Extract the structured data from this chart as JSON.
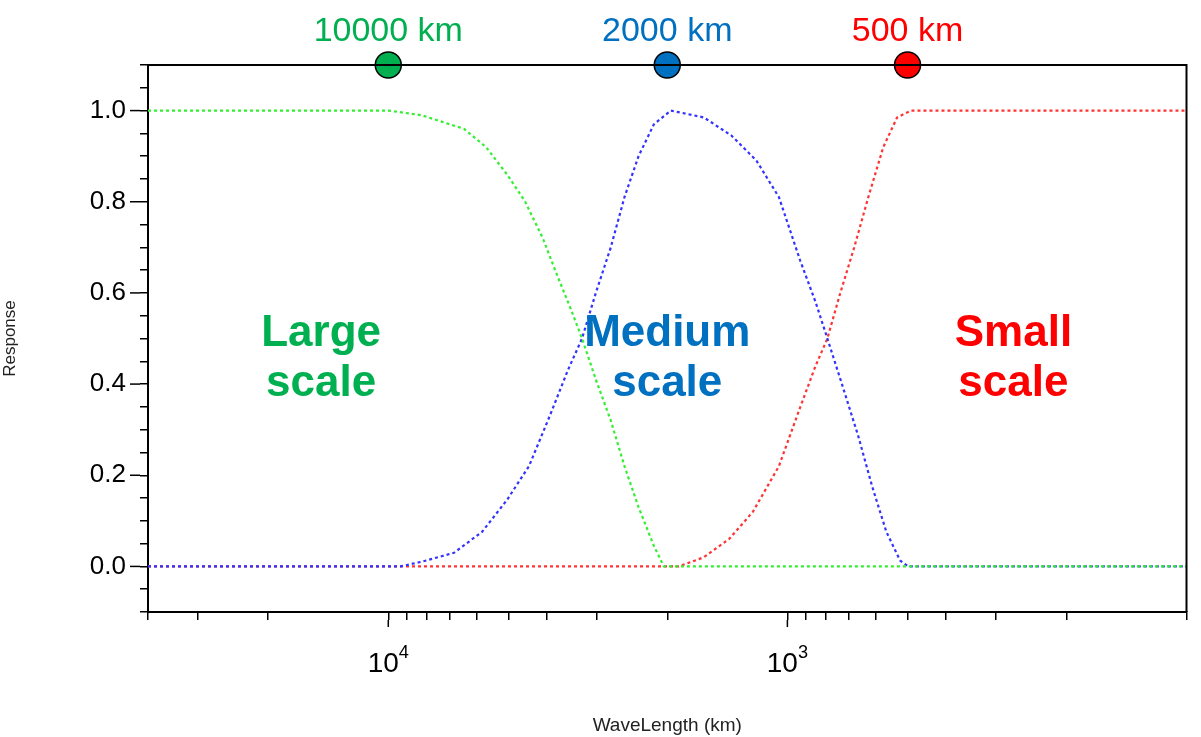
{
  "chart_data": {
    "type": "line",
    "xlabel": "WaveLength (km)",
    "ylabel": "Response",
    "log": "x",
    "line_style": "dotted",
    "grid": false,
    "legend": false,
    "tick_labels": "xy",
    "xlim": [
      40000,
      100
    ],
    "ylim": [
      -0.1,
      1.1
    ],
    "xticks": [
      {
        "value": 40000,
        "label": null
      },
      {
        "value": 30000,
        "label": null
      },
      {
        "value": 20000,
        "label": null
      },
      {
        "value": 10000,
        "label": "10$^{4}$"
      },
      {
        "value": 9000,
        "label": null
      },
      {
        "value": 8000,
        "label": null
      },
      {
        "value": 7000,
        "label": null
      },
      {
        "value": 6000,
        "label": null
      },
      {
        "value": 5000,
        "label": null
      },
      {
        "value": 4000,
        "label": null
      },
      {
        "value": 3000,
        "label": null
      },
      {
        "value": 2000,
        "label": null
      },
      {
        "value": 1000,
        "label": "10$^{3}$"
      },
      {
        "value": 900,
        "label": null
      },
      {
        "value": 800,
        "label": null
      },
      {
        "value": 700,
        "label": null
      },
      {
        "value": 600,
        "label": null
      },
      {
        "value": 500,
        "label": null
      },
      {
        "value": 400,
        "label": null
      },
      {
        "value": 300,
        "label": null
      },
      {
        "value": 200,
        "label": null
      },
      {
        "value": 100,
        "label": null
      }
    ],
    "yticks": [
      {
        "value": -0.1,
        "label": null
      },
      {
        "value": -0.05,
        "label": null
      },
      {
        "value": 0,
        "label": "0.0"
      },
      {
        "value": 0.05,
        "label": null
      },
      {
        "value": 0.1,
        "label": null
      },
      {
        "value": 0.15,
        "label": null
      },
      {
        "value": 0.2,
        "label": "0.2"
      },
      {
        "value": 0.25,
        "label": null
      },
      {
        "value": 0.3,
        "label": null
      },
      {
        "value": 0.35,
        "label": null
      },
      {
        "value": 0.4,
        "label": "0.4"
      },
      {
        "value": 0.45,
        "label": null
      },
      {
        "value": 0.5,
        "label": null
      },
      {
        "value": 0.55,
        "label": null
      },
      {
        "value": 0.6,
        "label": "0.6"
      },
      {
        "value": 0.65,
        "label": null
      },
      {
        "value": 0.7,
        "label": null
      },
      {
        "value": 0.75,
        "label": null
      },
      {
        "value": 0.8,
        "label": "0.8"
      },
      {
        "value": 0.85,
        "label": null
      },
      {
        "value": 0.9,
        "label": null
      },
      {
        "value": 0.95,
        "label": null
      },
      {
        "value": 1,
        "label": "1.0"
      },
      {
        "value": 1.05,
        "label": null
      },
      {
        "value": 1.1,
        "label": null
      }
    ],
    "series": [
      {
        "color": "#33ee33",
        "x": [
          40000,
          10000,
          8270,
          6460,
          5690,
          5040,
          4540,
          4100,
          3780,
          3490,
          3270,
          3020,
          2770,
          2560,
          2360,
          2160,
          2040,
          100
        ],
        "values": [
          1,
          1,
          0.99,
          0.96,
          0.92,
          0.86,
          0.8,
          0.72,
          0.64,
          0.565,
          0.5,
          0.41,
          0.32,
          0.22,
          0.13,
          0.045,
          0,
          0
        ]
      },
      {
        "color": "#3333ff",
        "x": [
          40000,
          9330,
          8270,
          6840,
          5820,
          5040,
          4440,
          3940,
          3550,
          3270,
          3020,
          2770,
          2560,
          2360,
          2160,
          1960,
          1620,
          1380,
          1195,
          1050,
          928,
          850,
          794,
          724,
          664,
          613,
          565,
          522,
          498,
          100
        ],
        "values": [
          0,
          0,
          0.01,
          0.03,
          0.076,
          0.146,
          0.22,
          0.33,
          0.43,
          0.5,
          0.6,
          0.7,
          0.81,
          0.9,
          0.97,
          1,
          0.985,
          0.945,
          0.89,
          0.81,
          0.67,
          0.58,
          0.5,
          0.39,
          0.285,
          0.175,
          0.076,
          0.013,
          0,
          0
        ]
      },
      {
        "color": "#ff3333",
        "x": [
          40000,
          1870,
          1620,
          1400,
          1220,
          1050,
          928,
          850,
          794,
          737,
          680,
          627,
          575,
          531,
          490,
          100
        ],
        "values": [
          0,
          0,
          0.02,
          0.06,
          0.12,
          0.22,
          0.35,
          0.44,
          0.5,
          0.6,
          0.7,
          0.81,
          0.92,
          0.985,
          1,
          1
        ]
      },
      {
        "type": "scatter",
        "name": "10000 km",
        "color": "#00b050",
        "marker": "circle",
        "x": [
          10000
        ],
        "values": [
          1.1
        ]
      },
      {
        "type": "scatter",
        "name": "2000 km",
        "color": "#0070c0",
        "marker": "circle",
        "x": [
          2000
        ],
        "values": [
          1.1
        ]
      },
      {
        "type": "scatter",
        "name": "500 km",
        "color": "#ff0000",
        "marker": "circle",
        "x": [
          500
        ],
        "values": [
          1.1
        ]
      }
    ],
    "annotations": [
      "Large scale",
      "Medium scale",
      "Small scale"
    ]
  }
}
